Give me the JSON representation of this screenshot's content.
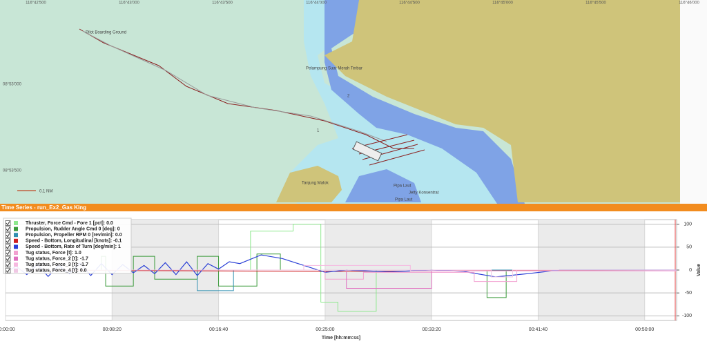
{
  "map": {
    "lon_labels": [
      "116°42'500",
      "116°43'000",
      "116°43'500",
      "116°44'000",
      "116°44'500",
      "116°45'000",
      "116°45'500",
      "116°46'000"
    ],
    "lat_labels": [
      "08°53'000",
      "08°53'500"
    ],
    "places": [
      "Pilot Boarding Ground",
      "Pelampung Suar Merah Terbar",
      "2",
      "1",
      "Tanjung Malok",
      "Pipa Laut",
      "Jetty Konsentrat",
      "Pipa Laut"
    ],
    "scale_label": "0.1 NM"
  },
  "panel": {
    "title": "Time Series - run_Ex2_Gas King"
  },
  "chart_data": {
    "type": "line",
    "xlabel": "Time [hh:mm:ss]",
    "ylabel": "Value",
    "xlim": [
      0,
      3150
    ],
    "ylim": [
      -110,
      110
    ],
    "xticks": [
      {
        "value": 0,
        "label": "00:00:00"
      },
      {
        "value": 500,
        "label": "00:08:20"
      },
      {
        "value": 1000,
        "label": "00:16:40"
      },
      {
        "value": 1500,
        "label": "00:25:00"
      },
      {
        "value": 2000,
        "label": "00:33:20"
      },
      {
        "value": 2500,
        "label": "00:41:40"
      },
      {
        "value": 3000,
        "label": "00:50:00"
      }
    ],
    "yticks": [
      100,
      50,
      0,
      -50,
      -100
    ],
    "grid": true,
    "series": [
      {
        "name": "Thruster, Force Cmd - Fore 1 [pct]: 0.0",
        "color": "#8de88d",
        "x": [
          0,
          1150,
          1150,
          1350,
          1350,
          1480,
          1480,
          1560,
          1560,
          1740,
          1740,
          3150
        ],
        "values": [
          0,
          0,
          85,
          85,
          100,
          100,
          -70,
          -70,
          -90,
          -90,
          0,
          0
        ]
      },
      {
        "name": "Propulsion, Rudder Angle Cmd 0 [deg]: 0",
        "color": "#3a9a3a",
        "x": [
          0,
          450,
          450,
          470,
          470,
          600,
          600,
          700,
          700,
          900,
          900,
          1000,
          1000,
          1180,
          1180,
          1290,
          1290,
          2260,
          2260,
          2350,
          2350,
          3150
        ],
        "values": [
          0,
          0,
          30,
          30,
          -35,
          -35,
          30,
          30,
          -20,
          -20,
          30,
          30,
          -35,
          -35,
          35,
          35,
          0,
          0,
          -60,
          -60,
          0,
          0
        ]
      },
      {
        "name": "Propulsion, Propeller RPM 0 [rev/min]: 0.0",
        "color": "#2f8fb0",
        "x": [
          0,
          900,
          900,
          1070,
          1070,
          3150
        ],
        "values": [
          0,
          0,
          -45,
          -45,
          0,
          0
        ]
      },
      {
        "name": "Speed - Bottom, Longitudinal [knots]: -0.1",
        "color": "#d02020",
        "x": [
          0,
          1500,
          3150
        ],
        "values": [
          0,
          -3,
          0
        ]
      },
      {
        "name": "Speed - Bottom, Rate of Turn [deg/min]: 1",
        "color": "#2a3fd6",
        "x": [
          0,
          50,
          100,
          150,
          200,
          250,
          300,
          350,
          400,
          450,
          500,
          550,
          600,
          650,
          700,
          750,
          800,
          850,
          900,
          950,
          1000,
          1050,
          1100,
          1200,
          1300,
          1400,
          1500,
          1600,
          1800,
          2000,
          2150,
          2300,
          2450,
          2600,
          2800,
          3150
        ],
        "values": [
          -5,
          8,
          -10,
          12,
          -14,
          10,
          -8,
          15,
          -12,
          14,
          -10,
          12,
          -6,
          10,
          -8,
          16,
          -10,
          18,
          -12,
          14,
          2,
          18,
          14,
          33,
          25,
          10,
          -5,
          0,
          -4,
          0,
          -3,
          -15,
          -8,
          0,
          0,
          0
        ]
      },
      {
        "name": "Tug status, Force [t]: 1.0",
        "color": "#f2a0d0",
        "x": [
          0,
          1500,
          1500,
          1680,
          1680,
          2200,
          2200,
          2400,
          2400,
          3150
        ],
        "values": [
          0,
          0,
          -20,
          -20,
          -5,
          -5,
          -25,
          -25,
          0,
          0
        ]
      },
      {
        "name": "Tug status, Force_2 [t]: -1.7",
        "color": "#e070c0",
        "x": [
          0,
          1600,
          1600,
          2000,
          2000,
          3150
        ],
        "values": [
          0,
          0,
          -40,
          -40,
          -2,
          -2
        ]
      },
      {
        "name": "Tug status, Force_3 [t]: -1.7",
        "color": "#f6b8e0",
        "x": [
          0,
          1400,
          1400,
          1900,
          1900,
          3150
        ],
        "values": [
          0,
          0,
          10,
          10,
          -2,
          -2
        ]
      },
      {
        "name": "Tug status, Force_4 [t]: 0.0",
        "color": "#f0c8e4",
        "x": [
          0,
          2280,
          2280,
          2380,
          2380,
          3150
        ],
        "values": [
          0,
          0,
          -15,
          -15,
          0,
          0
        ]
      }
    ]
  }
}
